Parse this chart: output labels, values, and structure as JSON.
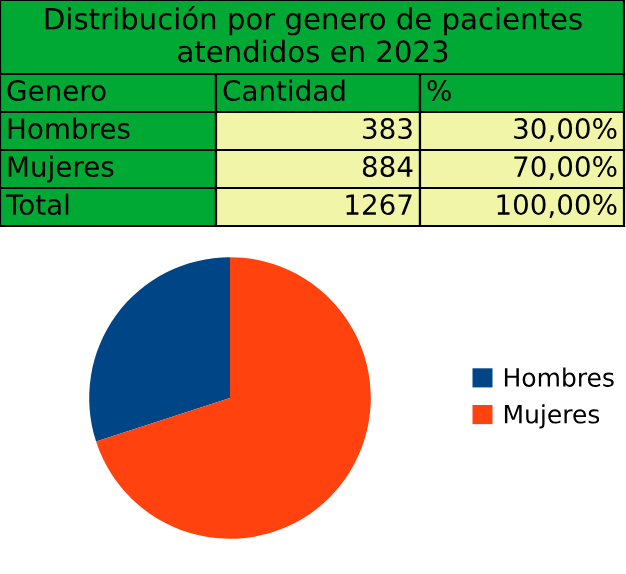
{
  "chart_data": {
    "type": "pie",
    "title": "Distribución por genero de pacientes atendidos en 2023",
    "categories": [
      "Hombres",
      "Mujeres"
    ],
    "values": [
      30,
      70
    ],
    "colors": [
      "#004586",
      "#ff420e"
    ],
    "legend": "right",
    "annotations": [
      "Genero",
      "Cantidad",
      "%",
      "383",
      "30,00%",
      "884",
      "70,00%",
      "Total",
      "1267",
      "100,00%"
    ]
  }
}
